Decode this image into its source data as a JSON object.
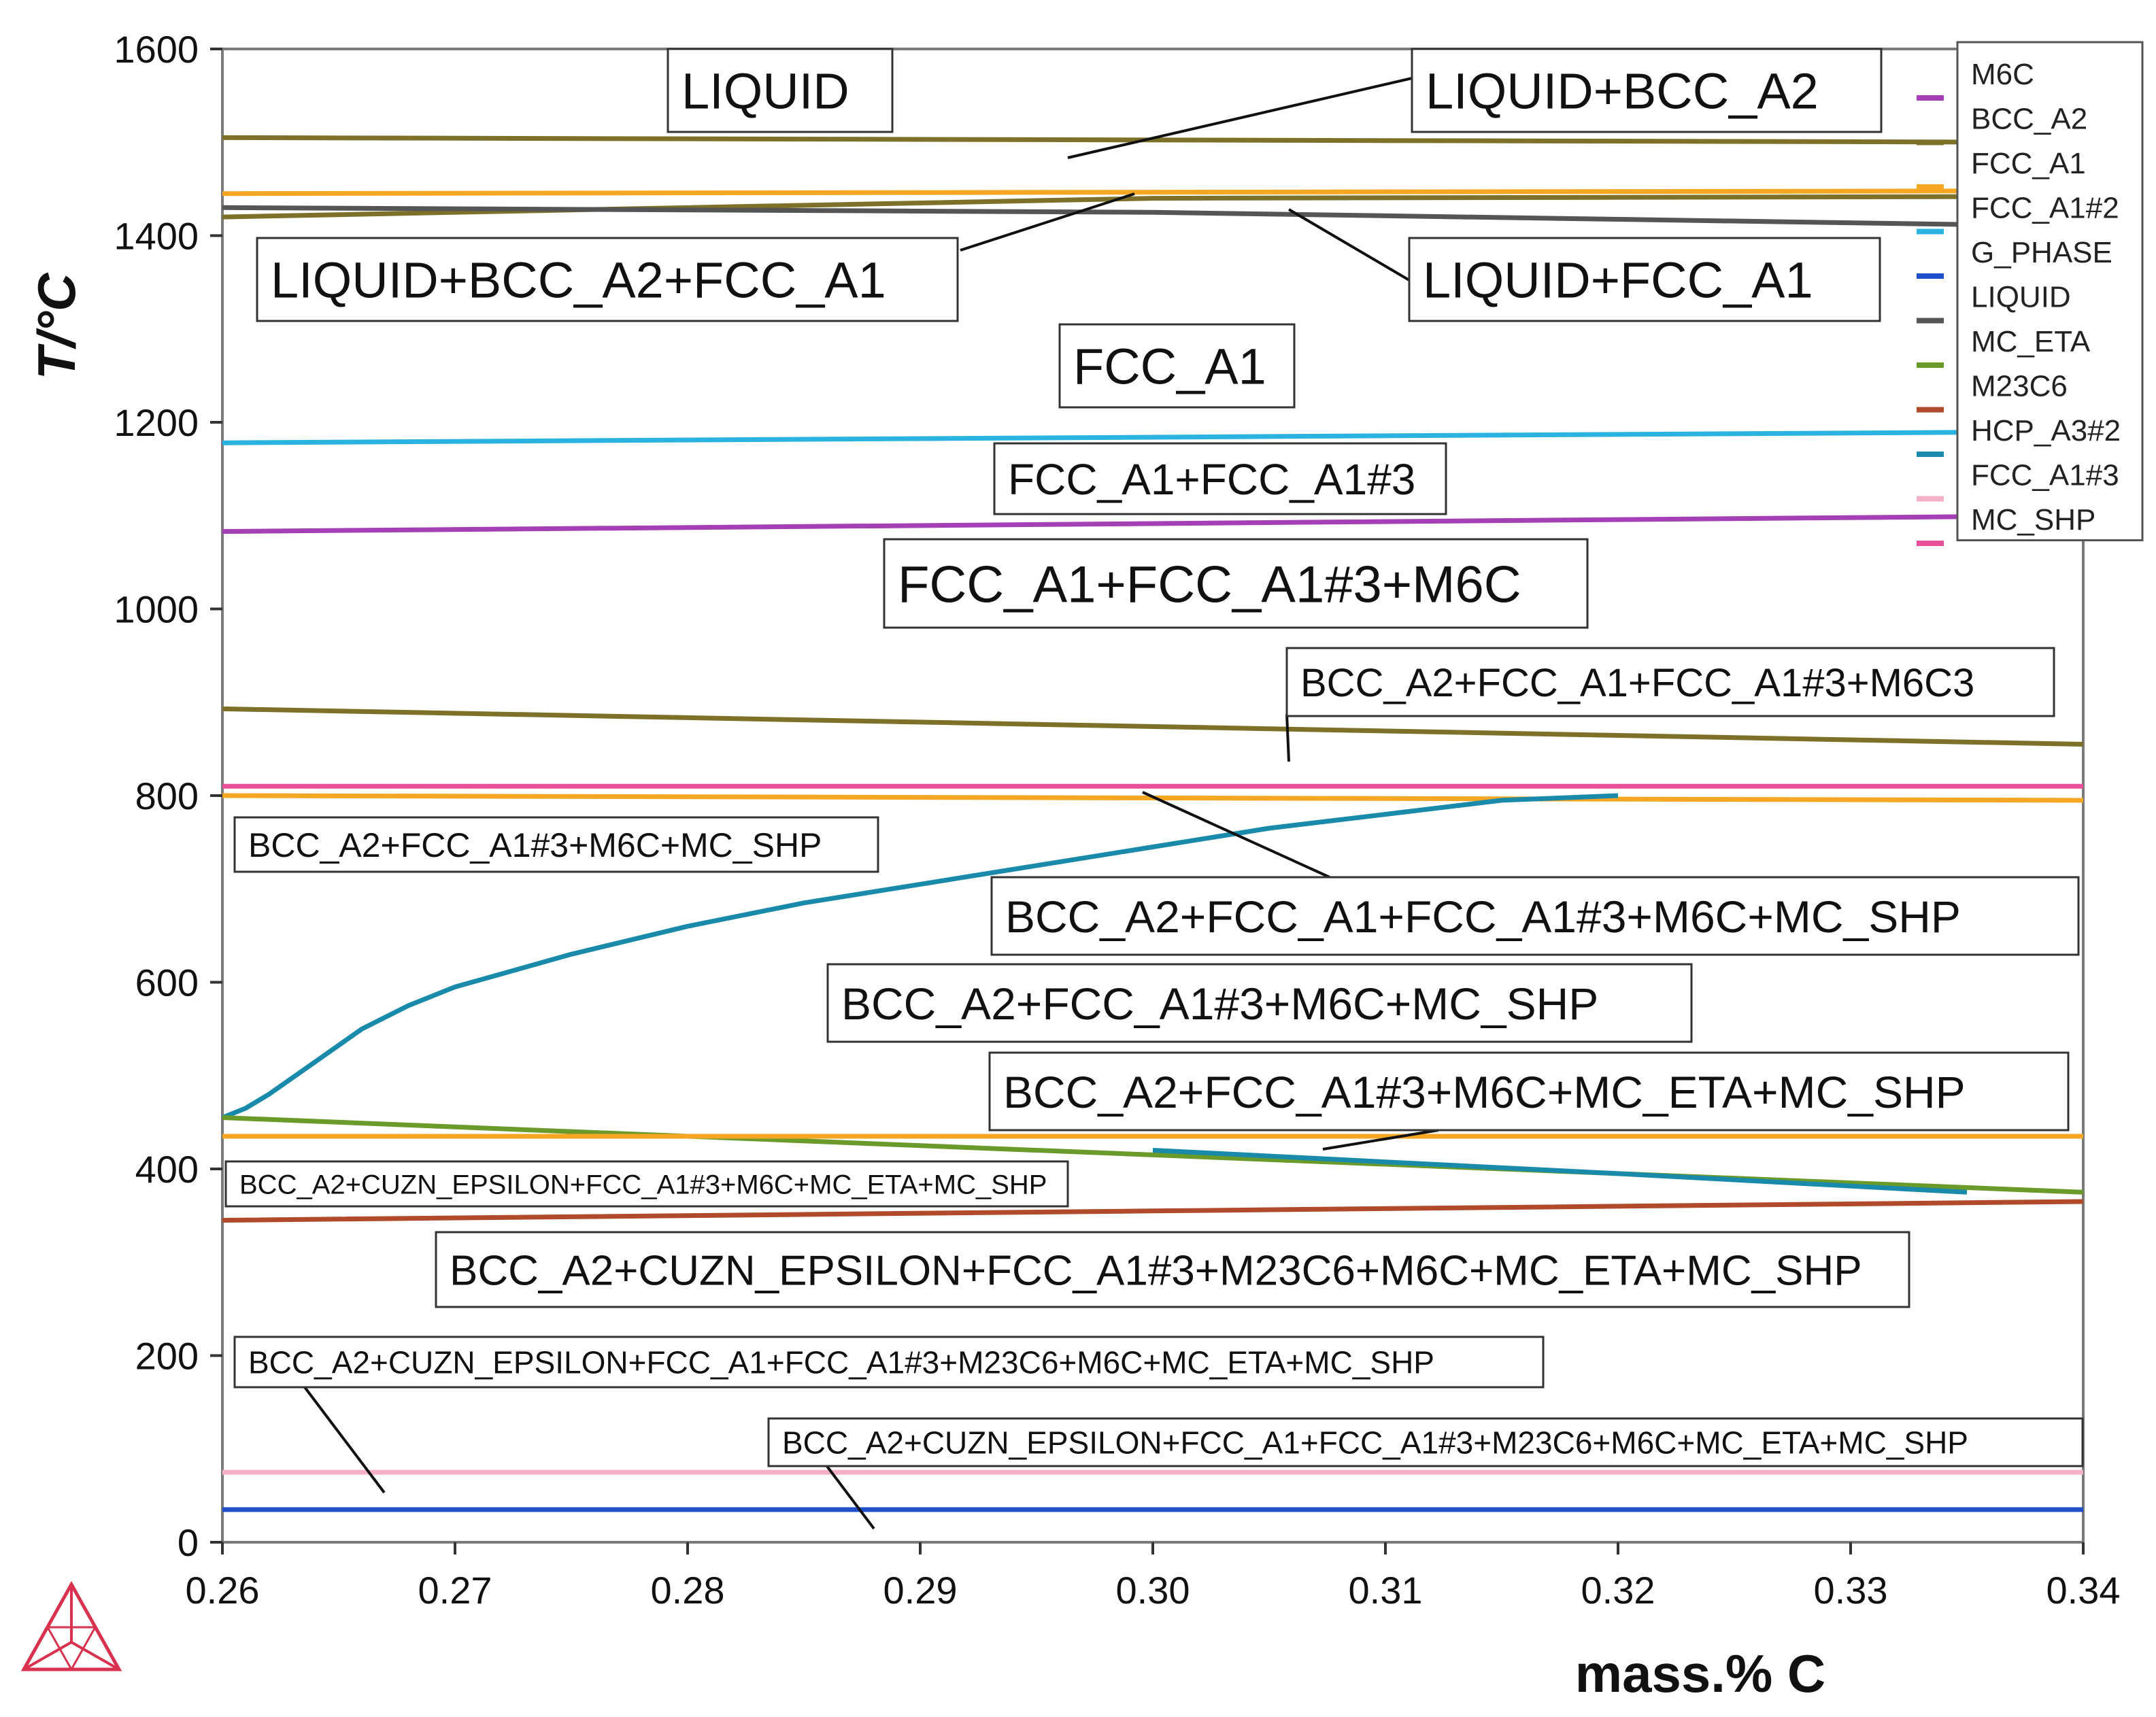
{
  "chart_data": {
    "type": "line",
    "title": "",
    "xlabel": "mass.% C",
    "ylabel": "T/°C",
    "xlim": [
      0.26,
      0.34
    ],
    "ylim": [
      0,
      1600
    ],
    "x_ticks": [
      "0.26",
      "0.27",
      "0.28",
      "0.29",
      "0.30",
      "0.31",
      "0.32",
      "0.33",
      "0.34"
    ],
    "y_ticks": [
      "0",
      "200",
      "400",
      "600",
      "800",
      "1000",
      "1200",
      "1400",
      "1600"
    ],
    "grid": false,
    "legend_position": "top-right",
    "legend": [
      {
        "name": "M6C",
        "color": "#a43fb5"
      },
      {
        "name": "BCC_A2",
        "color": "#7d7028"
      },
      {
        "name": "FCC_A1",
        "color": "#f5a623"
      },
      {
        "name": "FCC_A1#2",
        "color": "#2ab3e0"
      },
      {
        "name": "G_PHASE",
        "color": "#1f4fc9"
      },
      {
        "name": "LIQUID",
        "color": "#555555"
      },
      {
        "name": "MC_ETA",
        "color": "#6a9a2a"
      },
      {
        "name": "M23C6",
        "color": "#b04a2a"
      },
      {
        "name": "HCP_A3#2",
        "color": "#1a8aaa"
      },
      {
        "name": "FCC_A1#3",
        "color": "#f4b0c8"
      },
      {
        "name": "MC_SHP",
        "color": "#e8509a"
      }
    ],
    "series": [
      {
        "color": "#7d7028",
        "x": [
          0.26,
          0.34
        ],
        "y": [
          1505,
          1500
        ]
      },
      {
        "color": "#f5a623",
        "x": [
          0.26,
          0.34
        ],
        "y": [
          1445,
          1448
        ]
      },
      {
        "color": "#7d7028",
        "x": [
          0.26,
          0.3,
          0.34
        ],
        "y": [
          1420,
          1440,
          1442
        ]
      },
      {
        "color": "#555555",
        "x": [
          0.26,
          0.3,
          0.34
        ],
        "y": [
          1430,
          1425,
          1410
        ]
      },
      {
        "color": "#2ab3e0",
        "x": [
          0.26,
          0.34
        ],
        "y": [
          1178,
          1190
        ]
      },
      {
        "color": "#a43fb5",
        "x": [
          0.26,
          0.34
        ],
        "y": [
          1083,
          1100
        ]
      },
      {
        "color": "#7d7028",
        "x": [
          0.26,
          0.34
        ],
        "y": [
          893,
          855
        ]
      },
      {
        "color": "#e8509a",
        "x": [
          0.26,
          0.34
        ],
        "y": [
          810,
          810
        ]
      },
      {
        "color": "#f5a623",
        "x": [
          0.26,
          0.34
        ],
        "y": [
          800,
          795
        ]
      },
      {
        "color": "#1a8aaa",
        "x": [
          0.26,
          0.261,
          0.262,
          0.264,
          0.266,
          0.268,
          0.27,
          0.275,
          0.28,
          0.285,
          0.29,
          0.295,
          0.3,
          0.305,
          0.31,
          0.315,
          0.32
        ],
        "y": [
          455,
          465,
          480,
          515,
          550,
          575,
          595,
          630,
          660,
          685,
          705,
          725,
          745,
          765,
          780,
          795,
          800
        ]
      },
      {
        "color": "#6a9a2a",
        "x": [
          0.26,
          0.34
        ],
        "y": [
          455,
          375
        ]
      },
      {
        "color": "#f5a623",
        "x": [
          0.26,
          0.34
        ],
        "y": [
          435,
          435
        ]
      },
      {
        "color": "#1a8aaa",
        "x": [
          0.3,
          0.32,
          0.335
        ],
        "y": [
          420,
          395,
          375
        ]
      },
      {
        "color": "#b04a2a",
        "x": [
          0.26,
          0.3,
          0.34
        ],
        "y": [
          345,
          355,
          365
        ]
      },
      {
        "color": "#f4b0c8",
        "x": [
          0.26,
          0.34
        ],
        "y": [
          75,
          75
        ]
      },
      {
        "color": "#1f4fc9",
        "x": [
          0.26,
          0.34
        ],
        "y": [
          35,
          35
        ]
      }
    ],
    "annotations": [
      {
        "text": "LIQUID"
      },
      {
        "text": "LIQUID+BCC_A2"
      },
      {
        "text": "LIQUID+BCC_A2+FCC_A1"
      },
      {
        "text": "LIQUID+FCC_A1"
      },
      {
        "text": "FCC_A1"
      },
      {
        "text": "FCC_A1+FCC_A1#3"
      },
      {
        "text": "FCC_A1+FCC_A1#3+M6C"
      },
      {
        "text": "BCC_A2+FCC_A1+FCC_A1#3+M6C3"
      },
      {
        "text": "BCC_A2+FCC_A1#3+M6C+MC_SHP"
      },
      {
        "text": "BCC_A2+FCC_A1+FCC_A1#3+M6C+MC_SHP"
      },
      {
        "text": "BCC_A2+FCC_A1#3+M6C+MC_SHP"
      },
      {
        "text": "BCC_A2+FCC_A1#3+M6C+MC_ETA+MC_SHP"
      },
      {
        "text": "BCC_A2+CUZN_EPSILON+FCC_A1#3+M6C+MC_ETA+MC_SHP"
      },
      {
        "text": "BCC_A2+CUZN_EPSILON+FCC_A1#3+M23C6+M6C+MC_ETA+MC_SHP"
      },
      {
        "text": "BCC_A2+CUZN_EPSILON+FCC_A1+FCC_A1#3+M23C6+M6C+MC_ETA+MC_SHP"
      },
      {
        "text": "BCC_A2+CUZN_EPSILON+FCC_A1+FCC_A1#3+M23C6+M6C+MC_ETA+MC_SHP"
      }
    ]
  }
}
